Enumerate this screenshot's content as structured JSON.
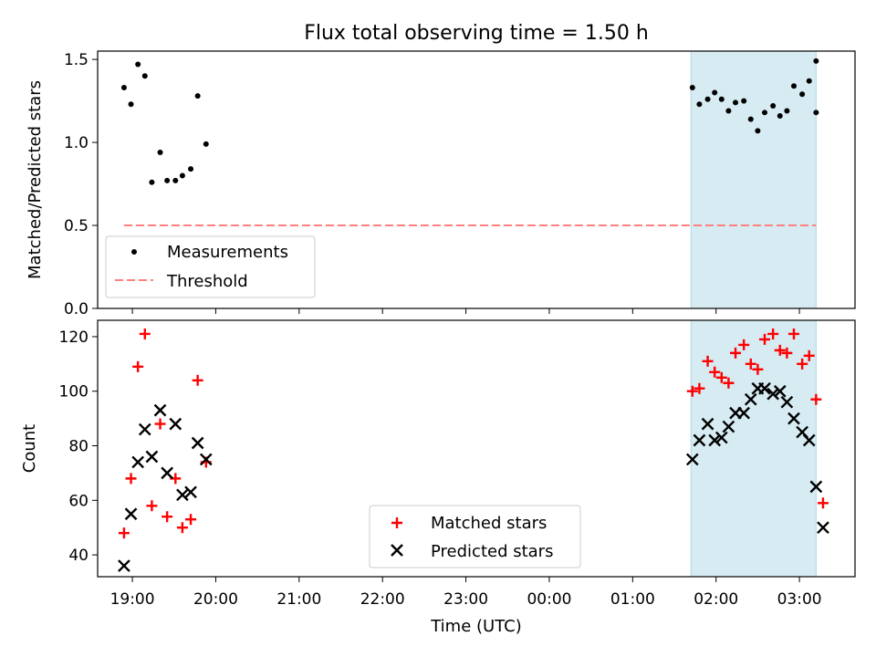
{
  "figure": {
    "title": "Flux total observing time = 1.50 h",
    "xlabel": "Time (UTC)",
    "highlight_color": "#add8e6"
  },
  "chart_data": [
    {
      "type": "scatter",
      "ylabel": "Matched/Predicted stars",
      "xlim": [
        "18:35",
        "03:40"
      ],
      "ylim": [
        0,
        1.55
      ],
      "yticks": [
        0.0,
        0.5,
        1.0,
        1.5
      ],
      "ytick_labels": [
        "0.0",
        "0.5",
        "1.0",
        "1.5"
      ],
      "shaded_interval": [
        "01:42",
        "03:12"
      ],
      "series": [
        {
          "name": "Measurements",
          "marker": "dot",
          "color": "#000000",
          "x": [
            "18:54",
            "18:59",
            "19:04",
            "19:09",
            "19:14",
            "19:20",
            "19:25",
            "19:31",
            "19:36",
            "19:42",
            "19:47",
            "19:53",
            "01:43",
            "01:48",
            "01:54",
            "01:59",
            "02:04",
            "02:09",
            "02:14",
            "02:20",
            "02:25",
            "02:30",
            "02:35",
            "02:41",
            "02:46",
            "02:51",
            "02:56",
            "03:02",
            "03:07",
            "03:12"
          ],
          "y": [
            1.33,
            1.23,
            1.47,
            1.4,
            0.76,
            0.94,
            0.77,
            0.77,
            0.8,
            0.84,
            1.28,
            0.99,
            1.33,
            1.23,
            1.26,
            1.3,
            1.26,
            1.19,
            1.24,
            1.25,
            1.14,
            1.07,
            1.18,
            1.22,
            1.16,
            1.19,
            1.34,
            1.29,
            1.37,
            1.49
          ]
        },
        {
          "name": "Threshold",
          "style": "dashed",
          "color": "#ff7f7f",
          "x": [
            "18:54",
            "03:12"
          ],
          "y": [
            0.5,
            0.5
          ]
        }
      ],
      "extra_points": {
        "x": [
          "03:12"
        ],
        "y": [
          1.18
        ]
      },
      "legend": "lower-left"
    },
    {
      "type": "scatter",
      "ylabel": "Count",
      "xlim": [
        "18:35",
        "03:40"
      ],
      "ylim": [
        32,
        126
      ],
      "yticks": [
        40,
        60,
        80,
        100,
        120
      ],
      "ytick_labels": [
        "40",
        "60",
        "80",
        "100",
        "120"
      ],
      "xticks": [
        "19:00",
        "20:00",
        "21:00",
        "22:00",
        "23:00",
        "00:00",
        "01:00",
        "02:00",
        "03:00"
      ],
      "xtick_labels": [
        "19:00",
        "20:00",
        "21:00",
        "22:00",
        "23:00",
        "00:00",
        "01:00",
        "02:00",
        "03:00"
      ],
      "shaded_interval": [
        "01:42",
        "03:12"
      ],
      "series": [
        {
          "name": "Matched stars",
          "marker": "plus",
          "color": "#ff0000",
          "x": [
            "18:54",
            "18:59",
            "19:04",
            "19:09",
            "19:14",
            "19:20",
            "19:25",
            "19:31",
            "19:36",
            "19:42",
            "19:47",
            "19:53",
            "01:43",
            "01:48",
            "01:54",
            "01:59",
            "02:04",
            "02:09",
            "02:14",
            "02:20",
            "02:25",
            "02:30",
            "02:35",
            "02:41",
            "02:46",
            "02:51",
            "02:56",
            "03:02",
            "03:07",
            "03:12",
            "03:17"
          ],
          "y": [
            48,
            68,
            109,
            121,
            58,
            88,
            54,
            68,
            50,
            53,
            104,
            74,
            100,
            101,
            111,
            107,
            105,
            103,
            114,
            117,
            110,
            108,
            119,
            121,
            115,
            114,
            121,
            110,
            113,
            97,
            59
          ]
        },
        {
          "name": "Predicted stars",
          "marker": "x",
          "color": "#000000",
          "x": [
            "18:54",
            "18:59",
            "19:04",
            "19:09",
            "19:14",
            "19:20",
            "19:25",
            "19:31",
            "19:36",
            "19:42",
            "19:47",
            "19:53",
            "01:43",
            "01:48",
            "01:54",
            "01:59",
            "02:04",
            "02:09",
            "02:14",
            "02:20",
            "02:25",
            "02:30",
            "02:35",
            "02:41",
            "02:46",
            "02:51",
            "02:56",
            "03:02",
            "03:07",
            "03:12",
            "03:17"
          ],
          "y": [
            36,
            55,
            74,
            86,
            76,
            93,
            70,
            88,
            62,
            63,
            81,
            75,
            75,
            82,
            88,
            82,
            83,
            87,
            92,
            92,
            97,
            101,
            101,
            99,
            100,
            96,
            90,
            85,
            82,
            65,
            50
          ]
        }
      ],
      "legend": "lower-center"
    }
  ]
}
